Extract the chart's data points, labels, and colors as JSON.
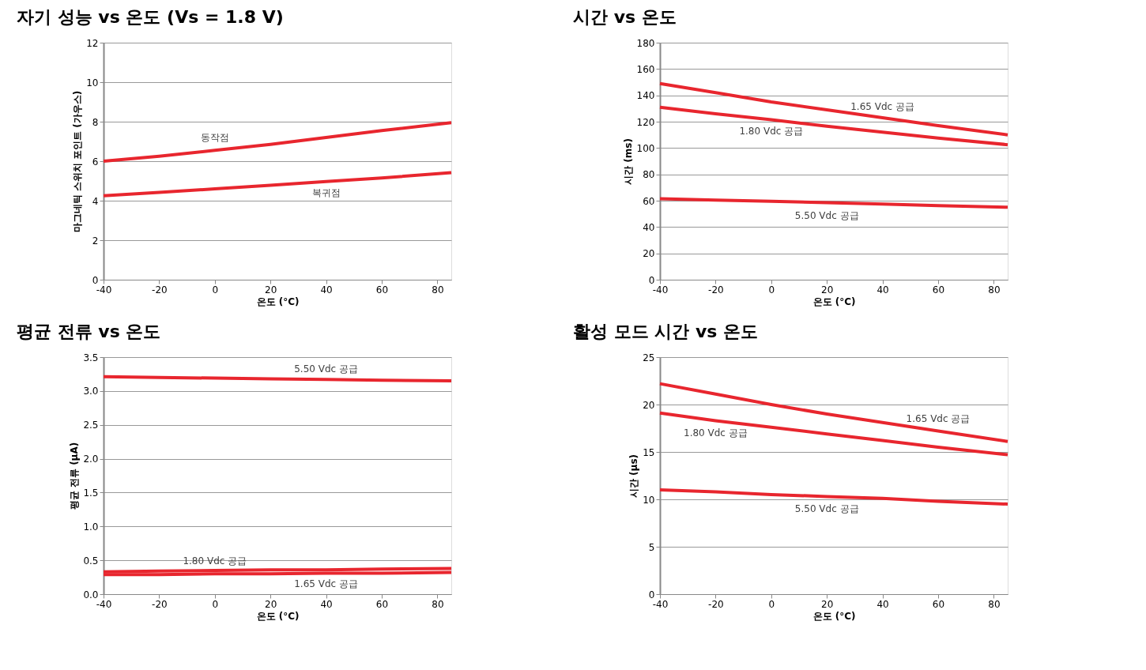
{
  "chart_data": [
    {
      "type": "line",
      "title": "자기 성능 vs 온도 (Vs = 1.8 V)",
      "xlabel": "온도 (°C)",
      "ylabel": "마그네틱 스위치 포인트 (가우스)",
      "x": [
        -40,
        -20,
        0,
        20,
        40,
        60,
        85
      ],
      "xlim": [
        -40,
        85
      ],
      "xticks": [
        -40,
        -20,
        0,
        20,
        40,
        60,
        80
      ],
      "ylim": [
        0,
        12
      ],
      "yticks": [
        0,
        2,
        4,
        6,
        8,
        10,
        12
      ],
      "grid": "y",
      "legend": false,
      "marker": "none",
      "line_style": "solid",
      "series": [
        {
          "name": "동작점",
          "color": "#e8262e",
          "values": [
            6.0,
            6.25,
            6.55,
            6.85,
            7.2,
            7.55,
            7.95
          ]
        },
        {
          "name": "복귀점",
          "color": "#e8262e",
          "values": [
            4.25,
            4.42,
            4.6,
            4.78,
            4.97,
            5.15,
            5.42
          ]
        }
      ]
    },
    {
      "type": "line",
      "title": "시간 vs 온도",
      "xlabel": "온도 (°C)",
      "ylabel": "시간 (ms)",
      "x": [
        -40,
        -20,
        0,
        20,
        40,
        60,
        85
      ],
      "xlim": [
        -40,
        85
      ],
      "xticks": [
        -40,
        -20,
        0,
        20,
        40,
        60,
        80
      ],
      "ylim": [
        0,
        180
      ],
      "yticks": [
        0,
        20,
        40,
        60,
        80,
        100,
        120,
        140,
        160,
        180
      ],
      "grid": "y",
      "legend": false,
      "marker": "none",
      "line_style": "solid",
      "series": [
        {
          "name": "1.65 Vdc 공급",
          "color": "#e8262e",
          "values": [
            149,
            142,
            135,
            129,
            123,
            117,
            110
          ]
        },
        {
          "name": "1.80 Vdc 공급",
          "color": "#e8262e",
          "values": [
            131,
            126,
            121.5,
            116.5,
            112,
            107.5,
            102.5
          ]
        },
        {
          "name": "5.50 Vdc 공급",
          "color": "#e8262e",
          "values": [
            61.5,
            60.5,
            59.5,
            58.5,
            57.5,
            56.3,
            55
          ]
        }
      ]
    },
    {
      "type": "line",
      "title": "평균 전류 vs 온도",
      "xlabel": "온도 (°C)",
      "ylabel": "평균 전류 (µA)",
      "x": [
        -40,
        -20,
        0,
        20,
        40,
        60,
        85
      ],
      "xlim": [
        -40,
        85
      ],
      "xticks": [
        -40,
        -20,
        0,
        20,
        40,
        60,
        80
      ],
      "ylim": [
        0,
        3.5
      ],
      "yticks": [
        {
          "value": 0,
          "label": "0.0"
        },
        {
          "value": 0.5,
          "label": "0.5"
        },
        {
          "value": 1,
          "label": "1.0"
        },
        {
          "value": 1.5,
          "label": "1.5"
        },
        {
          "value": 2,
          "label": "2.0"
        },
        {
          "value": 2.5,
          "label": "2.5"
        },
        {
          "value": 3,
          "label": "3.0"
        },
        {
          "value": 3.5,
          "label": "3.5"
        }
      ],
      "grid": "y",
      "legend": false,
      "marker": "none",
      "line_style": "solid",
      "series": [
        {
          "name": "5.50 Vdc 공급",
          "color": "#e8262e",
          "values": [
            3.21,
            3.2,
            3.19,
            3.18,
            3.17,
            3.16,
            3.15
          ]
        },
        {
          "name": "1.80 Vdc 공급",
          "color": "#e8262e",
          "values": [
            0.33,
            0.34,
            0.35,
            0.36,
            0.36,
            0.37,
            0.38
          ]
        },
        {
          "name": "1.65 Vdc 공급",
          "color": "#e8262e",
          "values": [
            0.29,
            0.29,
            0.3,
            0.3,
            0.31,
            0.31,
            0.32
          ]
        }
      ]
    },
    {
      "type": "line",
      "title": "활성 모드 시간 vs 온도",
      "xlabel": "온도 (°C)",
      "ylabel": "시간 (µs)",
      "x": [
        -40,
        -20,
        0,
        20,
        40,
        60,
        85
      ],
      "xlim": [
        -40,
        85
      ],
      "xticks": [
        -40,
        -20,
        0,
        20,
        40,
        60,
        80
      ],
      "ylim": [
        0,
        25
      ],
      "yticks": [
        0,
        5,
        10,
        15,
        20,
        25
      ],
      "grid": "y",
      "legend": false,
      "marker": "none",
      "line_style": "solid",
      "series": [
        {
          "name": "1.65 Vdc 공급",
          "color": "#e8262e",
          "values": [
            22.2,
            21.1,
            20.0,
            19.0,
            18.1,
            17.2,
            16.1
          ]
        },
        {
          "name": "1.80 Vdc 공급",
          "color": "#e8262e",
          "values": [
            19.1,
            18.3,
            17.6,
            16.9,
            16.2,
            15.5,
            14.7
          ]
        },
        {
          "name": "5.50 Vdc 공급",
          "color": "#e8262e",
          "values": [
            11.0,
            10.8,
            10.5,
            10.3,
            10.1,
            9.8,
            9.5
          ]
        }
      ]
    }
  ]
}
